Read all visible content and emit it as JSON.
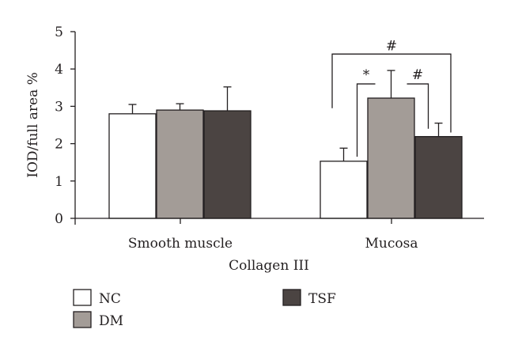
{
  "chart_data": {
    "type": "bar",
    "title": "",
    "xlabel": "Collagen III",
    "ylabel": "IOD/full area %",
    "ylim": [
      0,
      5
    ],
    "yticks": [
      "0",
      "1",
      "2",
      "3",
      "4",
      "5"
    ],
    "categories": [
      "Smooth muscle",
      "Mucosa"
    ],
    "series": [
      {
        "name": "NC",
        "color": "#ffffff",
        "values": [
          2.8,
          1.53
        ],
        "errors": [
          0.25,
          0.35
        ]
      },
      {
        "name": "DM",
        "color": "#a39c97",
        "values": [
          2.9,
          3.22
        ],
        "errors": [
          0.17,
          0.74
        ]
      },
      {
        "name": "TSF",
        "color": "#4b4442",
        "values": [
          2.88,
          2.19
        ],
        "errors": [
          0.64,
          0.36
        ]
      }
    ],
    "significance": [
      {
        "label": "#",
        "group": "Mucosa",
        "from": "NC",
        "to": "TSF"
      },
      {
        "label": "*",
        "group": "Mucosa",
        "from": "NC",
        "to": "DM"
      },
      {
        "label": "#",
        "group": "Mucosa",
        "from": "DM",
        "to": "TSF"
      }
    ],
    "legend_position": "bottom-left",
    "grid": false
  }
}
